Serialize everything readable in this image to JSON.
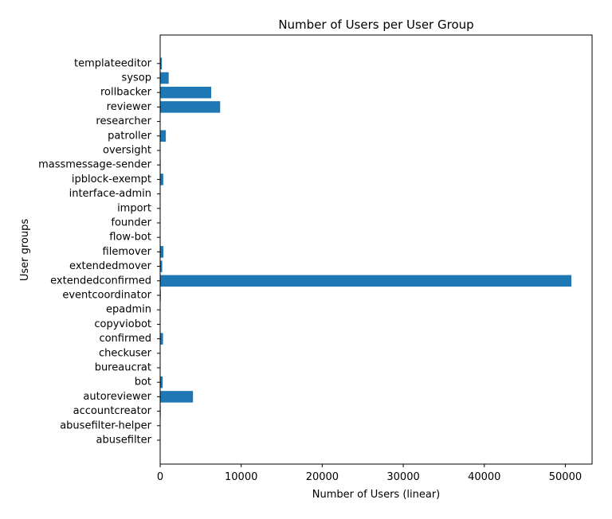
{
  "chart_data": {
    "type": "bar",
    "orientation": "horizontal",
    "title": "Number of Users per User Group",
    "xlabel": "Number of Users (linear)",
    "ylabel": "User groups",
    "xlim": [
      0,
      53300
    ],
    "xticks": [
      0,
      10000,
      20000,
      30000,
      40000,
      50000
    ],
    "bar_color": "#1f77b4",
    "grid": false,
    "categories": [
      "abusefilter",
      "abusefilter-helper",
      "accountcreator",
      "autoreviewer",
      "bot",
      "bureaucrat",
      "checkuser",
      "confirmed",
      "copyviobot",
      "epadmin",
      "eventcoordinator",
      "extendedconfirmed",
      "extendedmover",
      "filemover",
      "flow-bot",
      "founder",
      "import",
      "interface-admin",
      "ipblock-exempt",
      "massmessage-sender",
      "oversight",
      "patroller",
      "researcher",
      "reviewer",
      "rollbacker",
      "sysop",
      "templateeditor"
    ],
    "values": [
      30,
      40,
      70,
      4050,
      310,
      20,
      50,
      350,
      2,
      5,
      80,
      50750,
      250,
      400,
      2,
      1,
      2,
      10,
      380,
      60,
      40,
      700,
      3,
      7400,
      6300,
      1050,
      200
    ]
  }
}
